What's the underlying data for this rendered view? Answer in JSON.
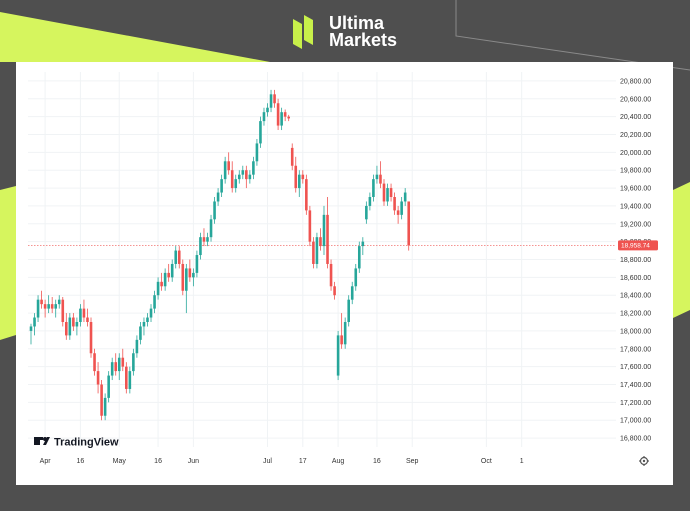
{
  "brand": {
    "name_line1": "Ultima",
    "name_line2": "Markets",
    "accent_color": "#c8f04a"
  },
  "watermark": {
    "name": "TradingView",
    "icon": "tradingview-logo-icon"
  },
  "settings_icon": "gear-icon",
  "colors": {
    "up": "#26a69a",
    "down": "#ef5350",
    "grid": "#f0f3f5",
    "price_line": "#ef5350"
  },
  "chart_data": {
    "type": "candlestick",
    "title": "",
    "xlabel": "",
    "ylabel": "",
    "ylim": [
      16700,
      20900
    ],
    "grid": true,
    "y_ticks": [
      "20,800.00",
      "20,600.00",
      "20,400.00",
      "20,200.00",
      "20,000.00",
      "19,800.00",
      "19,600.00",
      "19,400.00",
      "19,200.00",
      "19,000.00",
      "18,800.00",
      "18,600.00",
      "18,400.00",
      "18,200.00",
      "18,000.00",
      "17,800.00",
      "17,600.00",
      "17,400.00",
      "17,200.00",
      "17,000.00",
      "16,800.00"
    ],
    "x_ticks": [
      {
        "label": "Apr",
        "index": 4
      },
      {
        "label": "16",
        "index": 14
      },
      {
        "label": "May",
        "index": 25
      },
      {
        "label": "16",
        "index": 36
      },
      {
        "label": "Jun",
        "index": 46
      },
      {
        "label": "Jul",
        "index": 67
      },
      {
        "label": "17",
        "index": 77
      },
      {
        "label": "Aug",
        "index": 87
      },
      {
        "label": "16",
        "index": 98
      },
      {
        "label": "Sep",
        "index": 108
      },
      {
        "label": "Oct",
        "index": 129
      },
      {
        "label": "1",
        "index": 139
      }
    ],
    "last_price": 18958.74,
    "last_price_label": "18,958.74",
    "candles": [
      [
        18000,
        18080,
        17850,
        18050
      ],
      [
        18050,
        18200,
        17950,
        18150
      ],
      [
        18150,
        18400,
        18100,
        18350
      ],
      [
        18350,
        18450,
        18250,
        18300
      ],
      [
        18300,
        18350,
        18150,
        18250
      ],
      [
        18250,
        18400,
        18200,
        18300
      ],
      [
        18300,
        18380,
        18200,
        18250
      ],
      [
        18250,
        18350,
        18150,
        18300
      ],
      [
        18300,
        18400,
        18250,
        18350
      ],
      [
        18350,
        18380,
        18050,
        18100
      ],
      [
        18100,
        18200,
        17900,
        17950
      ],
      [
        17950,
        18200,
        17900,
        18150
      ],
      [
        18150,
        18200,
        18000,
        18050
      ],
      [
        18050,
        18150,
        17950,
        18100
      ],
      [
        18100,
        18300,
        18050,
        18250
      ],
      [
        18250,
        18350,
        18100,
        18150
      ],
      [
        18150,
        18250,
        18050,
        18100
      ],
      [
        18100,
        18150,
        17700,
        17750
      ],
      [
        17750,
        17800,
        17500,
        17550
      ],
      [
        17550,
        17650,
        17300,
        17400
      ],
      [
        17400,
        17450,
        17000,
        17050
      ],
      [
        17050,
        17300,
        17000,
        17250
      ],
      [
        17250,
        17550,
        17200,
        17500
      ],
      [
        17500,
        17700,
        17450,
        17650
      ],
      [
        17650,
        17750,
        17500,
        17550
      ],
      [
        17550,
        17750,
        17450,
        17700
      ],
      [
        17700,
        17800,
        17550,
        17600
      ],
      [
        17600,
        17650,
        17300,
        17350
      ],
      [
        17350,
        17600,
        17300,
        17550
      ],
      [
        17550,
        17800,
        17500,
        17750
      ],
      [
        17750,
        17950,
        17700,
        17900
      ],
      [
        17900,
        18100,
        17850,
        18050
      ],
      [
        18050,
        18150,
        17950,
        18100
      ],
      [
        18100,
        18200,
        18050,
        18150
      ],
      [
        18150,
        18300,
        18100,
        18250
      ],
      [
        18250,
        18450,
        18200,
        18400
      ],
      [
        18400,
        18600,
        18350,
        18550
      ],
      [
        18550,
        18650,
        18450,
        18500
      ],
      [
        18500,
        18700,
        18450,
        18650
      ],
      [
        18650,
        18750,
        18550,
        18600
      ],
      [
        18600,
        18800,
        18550,
        18750
      ],
      [
        18750,
        18950,
        18700,
        18900
      ],
      [
        18900,
        18950,
        18700,
        18750
      ],
      [
        18750,
        18800,
        18400,
        18450
      ],
      [
        18450,
        18750,
        18200,
        18700
      ],
      [
        18700,
        18800,
        18550,
        18600
      ],
      [
        18600,
        18700,
        18500,
        18650
      ],
      [
        18650,
        18900,
        18600,
        18850
      ],
      [
        18850,
        19100,
        18800,
        19050
      ],
      [
        19050,
        19150,
        18950,
        19000
      ],
      [
        19000,
        19100,
        18950,
        19050
      ],
      [
        19050,
        19300,
        19000,
        19250
      ],
      [
        19250,
        19500,
        19200,
        19450
      ],
      [
        19450,
        19600,
        19400,
        19550
      ],
      [
        19550,
        19750,
        19500,
        19700
      ],
      [
        19700,
        19950,
        19650,
        19900
      ],
      [
        19900,
        20000,
        19750,
        19800
      ],
      [
        19800,
        19900,
        19550,
        19600
      ],
      [
        19600,
        19750,
        19550,
        19700
      ],
      [
        19700,
        19800,
        19650,
        19750
      ],
      [
        19750,
        19850,
        19700,
        19800
      ],
      [
        19800,
        19850,
        19600,
        19700
      ],
      [
        19700,
        19800,
        19650,
        19750
      ],
      [
        19750,
        19950,
        19700,
        19900
      ],
      [
        19900,
        20150,
        19850,
        20100
      ],
      [
        20100,
        20400,
        20050,
        20350
      ],
      [
        20350,
        20500,
        20300,
        20450
      ],
      [
        20450,
        20550,
        20400,
        20500
      ],
      [
        20500,
        20700,
        20450,
        20650
      ],
      [
        20650,
        20700,
        20500,
        20550
      ],
      [
        20550,
        20600,
        20250,
        20300
      ],
      [
        20300,
        20500,
        20250,
        20450
      ],
      [
        20450,
        20480,
        20350,
        20400
      ],
      [
        20400,
        20420,
        20350,
        20380
      ],
      [
        20050,
        20100,
        19800,
        19850
      ],
      [
        19850,
        19950,
        19550,
        19600
      ],
      [
        19600,
        19800,
        19500,
        19750
      ],
      [
        19750,
        19800,
        19650,
        19700
      ],
      [
        19700,
        19750,
        19300,
        19350
      ],
      [
        19350,
        19400,
        18950,
        19000
      ],
      [
        19000,
        19050,
        18700,
        18750
      ],
      [
        18750,
        19100,
        18700,
        19050
      ],
      [
        19050,
        19150,
        18900,
        18950
      ],
      [
        18950,
        19400,
        18850,
        19300
      ],
      [
        19300,
        19500,
        18700,
        18750
      ],
      [
        18750,
        18800,
        18450,
        18500
      ],
      [
        18500,
        18550,
        18350,
        18400
      ],
      [
        17500,
        18000,
        17450,
        17950
      ],
      [
        17950,
        18200,
        17800,
        17850
      ],
      [
        17850,
        18150,
        17800,
        18100
      ],
      [
        18100,
        18400,
        18050,
        18350
      ],
      [
        18350,
        18550,
        18300,
        18500
      ],
      [
        18500,
        18750,
        18450,
        18700
      ],
      [
        18700,
        19000,
        18650,
        18950
      ],
      [
        18950,
        19050,
        18850,
        19000
      ],
      [
        19250,
        19450,
        19200,
        19400
      ],
      [
        19400,
        19550,
        19350,
        19500
      ],
      [
        19500,
        19750,
        19450,
        19700
      ],
      [
        19700,
        19850,
        19650,
        19750
      ],
      [
        19750,
        19900,
        19600,
        19650
      ],
      [
        19650,
        19700,
        19400,
        19450
      ],
      [
        19450,
        19650,
        19400,
        19600
      ],
      [
        19600,
        19650,
        19450,
        19500
      ],
      [
        19500,
        19550,
        19300,
        19350
      ],
      [
        19350,
        19400,
        19200,
        19300
      ],
      [
        19300,
        19500,
        19250,
        19450
      ],
      [
        19450,
        19600,
        19400,
        19550
      ],
      [
        19450,
        19450,
        18900,
        18960
      ]
    ]
  }
}
